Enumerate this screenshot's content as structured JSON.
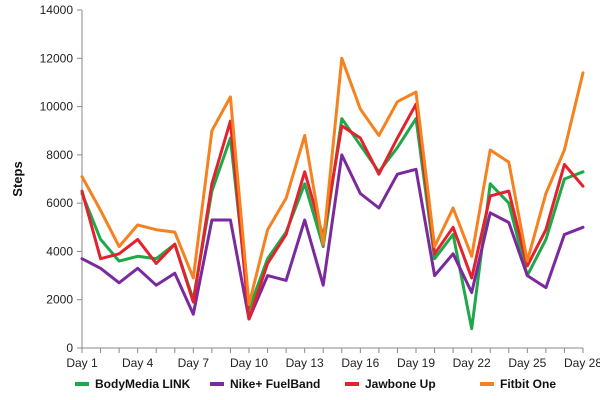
{
  "chart_data": {
    "type": "line",
    "title": "",
    "xlabel": "",
    "ylabel": "Steps",
    "ylim": [
      0,
      14000
    ],
    "y_ticks": [
      0,
      2000,
      4000,
      6000,
      8000,
      10000,
      12000,
      14000
    ],
    "y_tick_labels": [
      "0",
      "2000",
      "4000",
      "6000",
      "8000",
      "10000",
      "12000",
      "14000"
    ],
    "x": [
      1,
      2,
      3,
      4,
      5,
      6,
      7,
      8,
      9,
      10,
      11,
      12,
      13,
      14,
      15,
      16,
      17,
      18,
      19,
      20,
      21,
      22,
      23,
      24,
      25,
      26,
      27,
      28
    ],
    "x_ticks": [
      1,
      4,
      7,
      10,
      13,
      16,
      19,
      22,
      25,
      28
    ],
    "x_tick_labels": [
      "Day 1",
      "Day 4",
      "Day 7",
      "Day 10",
      "Day 13",
      "Day 16",
      "Day 19",
      "Day 22",
      "Day 25",
      "Day 28"
    ],
    "grid": false,
    "legend_position": "bottom",
    "series": [
      {
        "name": "BodyMedia LINK",
        "color": "#1fa84a",
        "values": [
          6400,
          4500,
          3600,
          3800,
          3700,
          4300,
          2000,
          6500,
          8700,
          1600,
          3700,
          4800,
          6800,
          4200,
          9500,
          8400,
          7300,
          8300,
          9500,
          3700,
          4700,
          800,
          6800,
          6000,
          3000,
          4500,
          7000,
          7300
        ]
      },
      {
        "name": "Nike+ FuelBand",
        "color": "#7b2a9e",
        "values": [
          3700,
          3300,
          2700,
          3300,
          2600,
          3100,
          1400,
          5300,
          5300,
          1200,
          3000,
          2800,
          5300,
          2600,
          8000,
          6400,
          5800,
          7200,
          7400,
          3000,
          3900,
          2300,
          5600,
          5200,
          3000,
          2500,
          4700,
          5000
        ]
      },
      {
        "name": "Jawbone Up",
        "color": "#e3222e",
        "values": [
          6500,
          3700,
          3900,
          4500,
          3500,
          4300,
          1900,
          6800,
          9400,
          1200,
          3500,
          4700,
          7300,
          4600,
          9200,
          8700,
          7200,
          8700,
          10100,
          3900,
          5000,
          2900,
          6300,
          6500,
          3400,
          4900,
          7600,
          6700
        ]
      },
      {
        "name": "Fitbit One",
        "color": "#f6821f",
        "values": [
          7100,
          5700,
          4200,
          5100,
          4900,
          4800,
          2900,
          9000,
          10400,
          1800,
          4900,
          6200,
          8800,
          4300,
          12000,
          9900,
          8800,
          10200,
          10600,
          4200,
          5800,
          3800,
          8200,
          7700,
          3600,
          6400,
          8200,
          11400
        ]
      }
    ]
  }
}
